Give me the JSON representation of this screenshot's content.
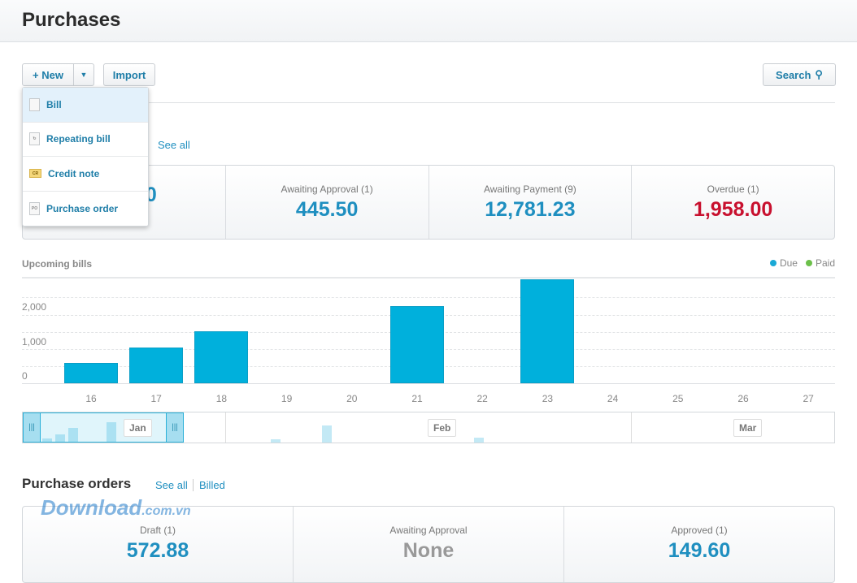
{
  "header": {
    "title": "Purchases"
  },
  "toolbar": {
    "new_label": "+ New",
    "import_label": "Import",
    "search_label": "Search"
  },
  "new_menu": {
    "items": [
      {
        "label": "Bill",
        "icon": "document-icon",
        "badge": ""
      },
      {
        "label": "Repeating bill",
        "icon": "repeat-document-icon",
        "badge": ""
      },
      {
        "label": "Credit note",
        "icon": "credit-note-icon",
        "badge": "CR"
      },
      {
        "label": "Purchase order",
        "icon": "purchase-order-icon",
        "badge": "PO"
      }
    ]
  },
  "bills": {
    "see_all": "See all",
    "stats": [
      {
        "label": "",
        "value": "0",
        "color": "#1f8fc0"
      },
      {
        "label": "Awaiting Approval (1)",
        "value": "445.50",
        "color": "#1f8fc0"
      },
      {
        "label": "Awaiting Payment (9)",
        "value": "12,781.23",
        "color": "#1f8fc0"
      },
      {
        "label": "Overdue (1)",
        "value": "1,958.00",
        "color": "#c8102e"
      }
    ]
  },
  "chart_data": {
    "type": "bar",
    "title": "Upcoming bills",
    "categories": [
      "16",
      "17",
      "18",
      "19",
      "20",
      "21",
      "22",
      "23",
      "24",
      "25",
      "26",
      "27"
    ],
    "series": [
      {
        "name": "Due",
        "color": "#00b0dc",
        "values": [
          580,
          1020,
          1490,
          0,
          0,
          2210,
          0,
          2980,
          0,
          0,
          0,
          0
        ]
      },
      {
        "name": "Paid",
        "color": "#6cc04a",
        "values": [
          0,
          0,
          0,
          0,
          0,
          0,
          0,
          0,
          0,
          0,
          0,
          0
        ]
      }
    ],
    "yticks": [
      "2,000",
      "1,000",
      "0"
    ],
    "ylim": [
      0,
      3000
    ],
    "grid": true,
    "legend": "top-right"
  },
  "navigator": {
    "months": [
      "Jan",
      "Feb",
      "Mar"
    ]
  },
  "purchase_orders": {
    "title": "Purchase orders",
    "see_all": "See all",
    "billed": "Billed",
    "stats": [
      {
        "label": "Draft (1)",
        "value": "572.88",
        "color": "#1f8fc0"
      },
      {
        "label": "Awaiting Approval",
        "value": "None",
        "color": "#999999"
      },
      {
        "label": "Approved (1)",
        "value": "149.60",
        "color": "#1f8fc0"
      }
    ]
  },
  "watermark": "Download.com.vn"
}
